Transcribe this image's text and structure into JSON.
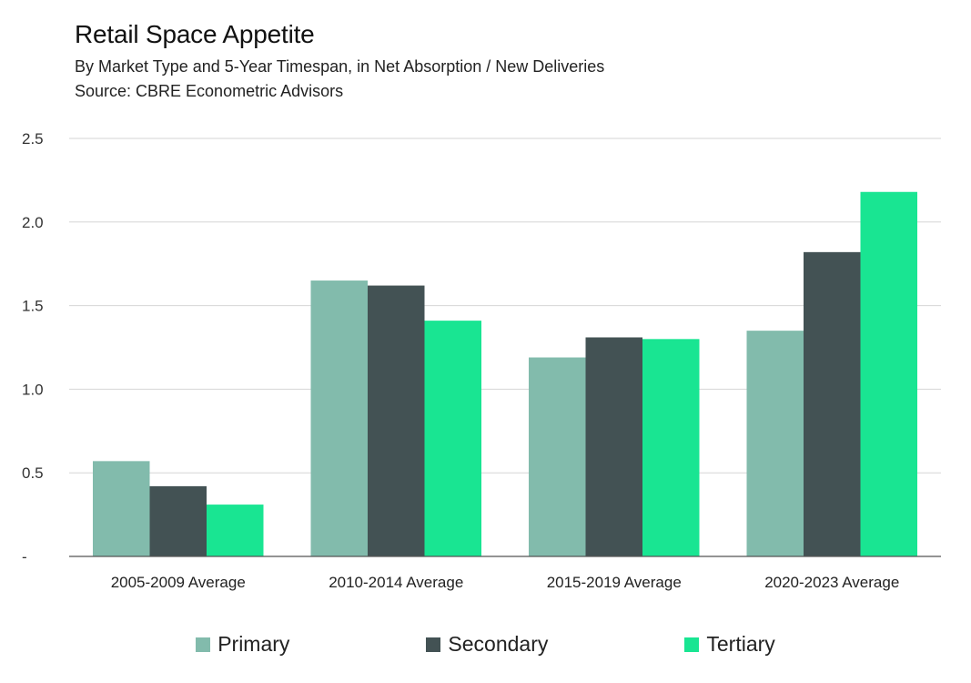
{
  "header": {
    "title": "Retail Space Appetite",
    "subtitle": "By Market Type and 5-Year Timespan, in Net Absorption / New Deliveries",
    "source": "Source: CBRE Econometric Advisors"
  },
  "colors": {
    "Primary": "#82bbac",
    "Secondary": "#435254",
    "Tertiary": "#19e592",
    "grid": "#d6d6d6",
    "axis": "#555555"
  },
  "chart_data": {
    "type": "bar",
    "title": "Retail Space Appetite",
    "xlabel": "",
    "ylabel": "",
    "ylim": [
      0,
      2.5
    ],
    "yticks": [
      0,
      0.5,
      1.0,
      1.5,
      2.0,
      2.5
    ],
    "ytick_labels": [
      "-",
      "0.5",
      "1.0",
      "1.5",
      "2.0",
      "2.5"
    ],
    "grid": true,
    "legend_position": "bottom-center",
    "categories": [
      "2005-2009 Average",
      "2010-2014 Average",
      "2015-2019 Average",
      "2020-2023 Average"
    ],
    "series": [
      {
        "name": "Primary",
        "values": [
          0.57,
          1.65,
          1.19,
          1.35
        ]
      },
      {
        "name": "Secondary",
        "values": [
          0.42,
          1.62,
          1.31,
          1.82
        ]
      },
      {
        "name": "Tertiary",
        "values": [
          0.31,
          1.41,
          1.3,
          2.18
        ]
      }
    ]
  }
}
